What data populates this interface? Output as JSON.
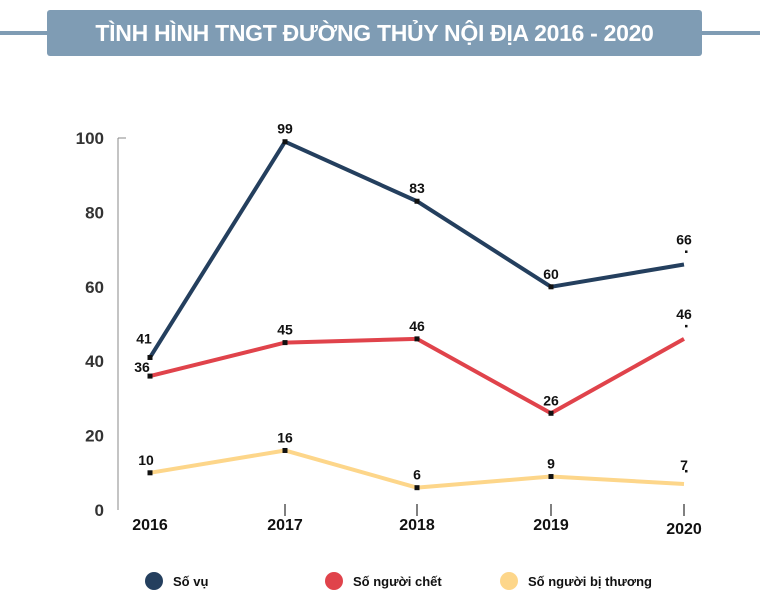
{
  "title": "TÌNH HÌNH TNGT ĐƯỜNG THỦY NỘI ĐỊA 2016 - 2020",
  "chart_data": {
    "type": "line",
    "title": "TÌNH HÌNH TNGT ĐƯỜNG THỦY NỘI ĐỊA 2016 - 2020",
    "categories": [
      "2016",
      "2017",
      "2018",
      "2019",
      "2020"
    ],
    "ylim": [
      0,
      100
    ],
    "yticks": [
      0,
      20,
      40,
      60,
      80,
      100
    ],
    "grid": false,
    "legend": "bottom",
    "series": [
      {
        "name": "Số vụ",
        "values": [
          41,
          99,
          83,
          60,
          66
        ],
        "color": "#243f5e"
      },
      {
        "name": "Số người chết",
        "values": [
          36,
          45,
          46,
          26,
          46
        ],
        "color": "#e0434b"
      },
      {
        "name": "Số người bị thương",
        "values": [
          10,
          16,
          6,
          9,
          7
        ],
        "color": "#fdd68a"
      }
    ]
  }
}
